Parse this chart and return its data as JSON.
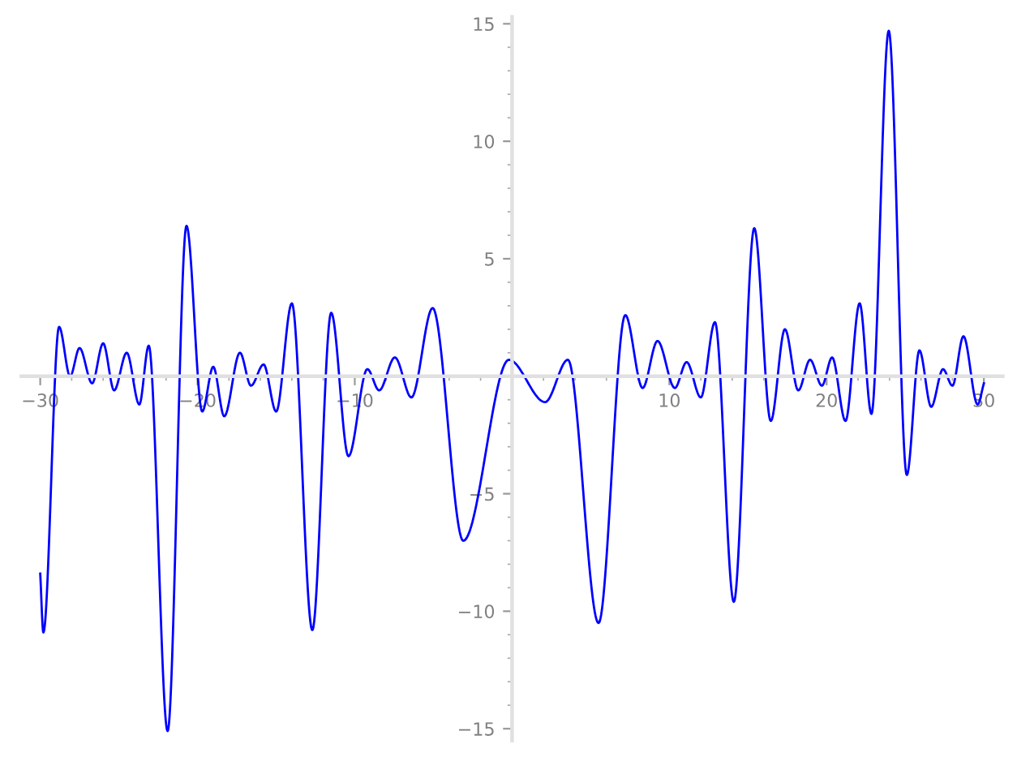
{
  "chart_data": {
    "type": "line",
    "color": "#0000ff",
    "marker": "none",
    "line_style": "solid",
    "x": [
      -30,
      -29.8,
      -28.8,
      -28.1,
      -27.5,
      -26.7,
      -26.0,
      -25.3,
      -24.5,
      -23.7,
      -23.1,
      -21.9,
      -20.7,
      -19.7,
      -19.0,
      -18.3,
      -17.3,
      -16.6,
      -15.8,
      -15.0,
      -14.0,
      -12.7,
      -11.5,
      -10.4,
      -9.2,
      -8.45,
      -7.45,
      -6.4,
      -5.05,
      -3.1,
      -0.2,
      2.1,
      3.55,
      5.5,
      7.2,
      8.3,
      9.25,
      10.35,
      11.1,
      12.0,
      12.9,
      14.1,
      15.4,
      16.45,
      17.35,
      18.2,
      18.95,
      19.7,
      20.35,
      21.2,
      22.1,
      22.85,
      23.95,
      25.1,
      25.9,
      26.65,
      27.4,
      28.0,
      28.7,
      29.6,
      30
    ],
    "values": [
      -8.4,
      -10.9,
      2.1,
      0.0,
      1.2,
      -0.3,
      1.4,
      -0.6,
      1.0,
      -1.2,
      1.3,
      -15.1,
      6.4,
      -1.5,
      0.4,
      -1.7,
      1.0,
      -0.4,
      0.5,
      -1.5,
      3.1,
      -10.8,
      2.7,
      -3.4,
      0.3,
      -0.6,
      0.8,
      -0.9,
      2.9,
      -7.0,
      0.7,
      -1.1,
      0.7,
      -10.5,
      2.6,
      -0.5,
      1.5,
      -0.5,
      0.6,
      -0.9,
      2.3,
      -9.6,
      6.3,
      -1.9,
      2.0,
      -0.6,
      0.7,
      -0.4,
      0.8,
      -1.9,
      3.1,
      -1.6,
      14.7,
      -4.2,
      1.1,
      -1.3,
      0.3,
      -0.4,
      1.7,
      -1.2,
      -0.3
    ],
    "xlim": [
      -31.2,
      31.2
    ],
    "ylim": [
      -15.5,
      15.3
    ],
    "xticks": [
      -30,
      {
        "value": -28,
        "label": null
      },
      {
        "value": -26,
        "label": null
      },
      {
        "value": -24,
        "label": null
      },
      {
        "value": -22,
        "label": null
      },
      -20,
      {
        "value": -18,
        "label": null
      },
      {
        "value": -16,
        "label": null
      },
      {
        "value": -14,
        "label": null
      },
      {
        "value": -12,
        "label": null
      },
      -10,
      {
        "value": -8,
        "label": null
      },
      {
        "value": -6,
        "label": null
      },
      {
        "value": -4,
        "label": null
      },
      {
        "value": -2,
        "label": null
      },
      {
        "value": 2,
        "label": null
      },
      {
        "value": 4,
        "label": null
      },
      {
        "value": 6,
        "label": null
      },
      {
        "value": 8,
        "label": null
      },
      10,
      {
        "value": 12,
        "label": null
      },
      {
        "value": 14,
        "label": null
      },
      {
        "value": 16,
        "label": null
      },
      {
        "value": 18,
        "label": null
      },
      20,
      {
        "value": 22,
        "label": null
      },
      {
        "value": 24,
        "label": null
      },
      {
        "value": 26,
        "label": null
      },
      {
        "value": 28,
        "label": null
      },
      30
    ],
    "yticks": [
      -15,
      {
        "value": -14,
        "label": null
      },
      {
        "value": -13,
        "label": null
      },
      {
        "value": -12,
        "label": null
      },
      {
        "value": -11,
        "label": null
      },
      -10,
      {
        "value": -9,
        "label": null
      },
      {
        "value": -8,
        "label": null
      },
      {
        "value": -7,
        "label": null
      },
      {
        "value": -6,
        "label": null
      },
      -5,
      {
        "value": -4,
        "label": null
      },
      {
        "value": -3,
        "label": null
      },
      {
        "value": -2,
        "label": null
      },
      {
        "value": -1,
        "label": null
      },
      {
        "value": 1,
        "label": null
      },
      {
        "value": 2,
        "label": null
      },
      {
        "value": 3,
        "label": null
      },
      {
        "value": 4,
        "label": null
      },
      5,
      {
        "value": 6,
        "label": null
      },
      {
        "value": 7,
        "label": null
      },
      {
        "value": 8,
        "label": null
      },
      {
        "value": 9,
        "label": null
      },
      10,
      {
        "value": 11,
        "label": null
      },
      {
        "value": 12,
        "label": null
      },
      {
        "value": 13,
        "label": null
      },
      {
        "value": 14,
        "label": null
      },
      15
    ]
  }
}
